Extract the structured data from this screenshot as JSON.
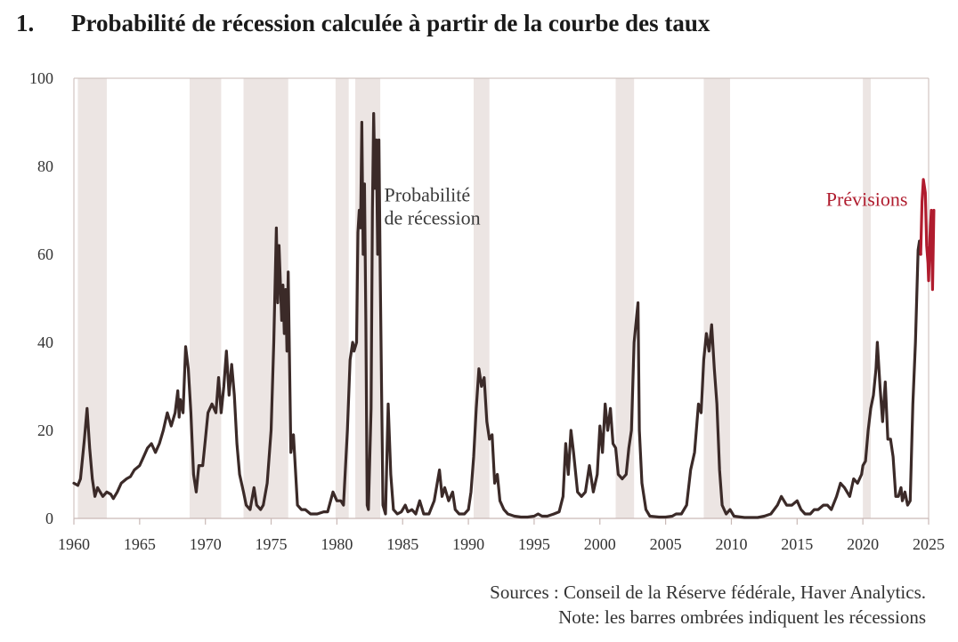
{
  "figure": {
    "number": "1.",
    "title": "Probabilité de récession calculée à partir de la courbe des taux"
  },
  "colors": {
    "series_line": "#3b2a28",
    "forecast_line": "#b01c2e",
    "recession_shade": "#ece5e3",
    "axis": "#c9b9b6"
  },
  "chart_data": {
    "type": "line",
    "title": "Probabilité de récession calculée à partir de la courbe des taux",
    "xlabel": "",
    "ylabel": "",
    "xlim": [
      1960,
      2025
    ],
    "ylim": [
      0,
      100
    ],
    "x_ticks": [
      "1960",
      "1965",
      "1970",
      "1975",
      "1980",
      "1985",
      "1990",
      "1995",
      "2000",
      "2005",
      "2010",
      "2015",
      "2020",
      "2025"
    ],
    "y_ticks": [
      "0",
      "20",
      "40",
      "60",
      "80",
      "100"
    ],
    "grid": false,
    "legend": "none",
    "annotations": [
      {
        "text_lines": [
          "Probabilité",
          "de récession"
        ],
        "series": "Probabilité de récession",
        "x": 1983.6,
        "y": 72
      },
      {
        "text_lines": [
          "Prévisions"
        ],
        "series": "Prévisions",
        "x": 2017.2,
        "y": 71
      }
    ],
    "recessions": [
      [
        1960.3,
        1962.5
      ],
      [
        1968.8,
        1971.2
      ],
      [
        1972.9,
        1976.3
      ],
      [
        1979.9,
        1980.9
      ],
      [
        1981.4,
        1983.3
      ],
      [
        1990.4,
        1991.6
      ],
      [
        2001.2,
        2002.6
      ],
      [
        2007.9,
        2009.9
      ],
      [
        2020.0,
        2020.6
      ]
    ],
    "series": [
      {
        "name": "Probabilité de récession",
        "points": [
          [
            1960.0,
            8
          ],
          [
            1960.3,
            7.5
          ],
          [
            1960.5,
            9
          ],
          [
            1960.8,
            18
          ],
          [
            1961.0,
            25
          ],
          [
            1961.2,
            16
          ],
          [
            1961.4,
            9
          ],
          [
            1961.6,
            5
          ],
          [
            1961.8,
            7
          ],
          [
            1962.0,
            6
          ],
          [
            1962.2,
            5
          ],
          [
            1962.5,
            6
          ],
          [
            1962.8,
            5.5
          ],
          [
            1963.0,
            4.5
          ],
          [
            1963.3,
            6
          ],
          [
            1963.6,
            8
          ],
          [
            1964.0,
            9
          ],
          [
            1964.3,
            9.5
          ],
          [
            1964.6,
            11
          ],
          [
            1965.0,
            12
          ],
          [
            1965.3,
            14
          ],
          [
            1965.6,
            16
          ],
          [
            1965.9,
            17
          ],
          [
            1966.2,
            15
          ],
          [
            1966.5,
            17
          ],
          [
            1966.8,
            20
          ],
          [
            1967.1,
            24
          ],
          [
            1967.4,
            21
          ],
          [
            1967.7,
            24
          ],
          [
            1967.9,
            29
          ],
          [
            1968.0,
            23
          ],
          [
            1968.1,
            27
          ],
          [
            1968.3,
            24
          ],
          [
            1968.5,
            39
          ],
          [
            1968.7,
            34
          ],
          [
            1968.9,
            24
          ],
          [
            1969.1,
            10
          ],
          [
            1969.3,
            6
          ],
          [
            1969.5,
            12
          ],
          [
            1969.8,
            12
          ],
          [
            1970.0,
            18
          ],
          [
            1970.2,
            24
          ],
          [
            1970.5,
            26
          ],
          [
            1970.8,
            24
          ],
          [
            1971.0,
            32
          ],
          [
            1971.2,
            24
          ],
          [
            1971.4,
            30
          ],
          [
            1971.6,
            38
          ],
          [
            1971.8,
            28
          ],
          [
            1972.0,
            35
          ],
          [
            1972.2,
            28
          ],
          [
            1972.4,
            17
          ],
          [
            1972.6,
            10
          ],
          [
            1972.9,
            6
          ],
          [
            1973.1,
            3
          ],
          [
            1973.4,
            2
          ],
          [
            1973.7,
            7
          ],
          [
            1973.9,
            3
          ],
          [
            1974.2,
            2
          ],
          [
            1974.4,
            3
          ],
          [
            1974.7,
            8
          ],
          [
            1975.0,
            20
          ],
          [
            1975.2,
            40
          ],
          [
            1975.4,
            66
          ],
          [
            1975.5,
            49
          ],
          [
            1975.6,
            62
          ],
          [
            1975.8,
            45
          ],
          [
            1975.9,
            53
          ],
          [
            1976.0,
            42
          ],
          [
            1976.1,
            52
          ],
          [
            1976.2,
            38
          ],
          [
            1976.3,
            56
          ],
          [
            1976.5,
            15
          ],
          [
            1976.7,
            19
          ],
          [
            1977.0,
            3
          ],
          [
            1977.3,
            2
          ],
          [
            1977.6,
            2
          ],
          [
            1978.0,
            1
          ],
          [
            1978.5,
            1
          ],
          [
            1979.0,
            1.5
          ],
          [
            1979.3,
            1.5
          ],
          [
            1979.7,
            6
          ],
          [
            1980.0,
            4
          ],
          [
            1980.3,
            4
          ],
          [
            1980.5,
            3
          ],
          [
            1980.8,
            20
          ],
          [
            1981.0,
            36
          ],
          [
            1981.2,
            40
          ],
          [
            1981.3,
            38
          ],
          [
            1981.5,
            40
          ],
          [
            1981.6,
            65
          ],
          [
            1981.7,
            70
          ],
          [
            1981.8,
            66
          ],
          [
            1981.9,
            90
          ],
          [
            1982.0,
            60
          ],
          [
            1982.1,
            76
          ],
          [
            1982.2,
            45
          ],
          [
            1982.3,
            3
          ],
          [
            1982.4,
            2
          ],
          [
            1982.6,
            25
          ],
          [
            1982.7,
            70
          ],
          [
            1982.8,
            92
          ],
          [
            1982.9,
            75
          ],
          [
            1983.0,
            86
          ],
          [
            1983.1,
            60
          ],
          [
            1983.2,
            86
          ],
          [
            1983.3,
            55
          ],
          [
            1983.5,
            3
          ],
          [
            1983.7,
            1
          ],
          [
            1983.9,
            26
          ],
          [
            1984.1,
            10
          ],
          [
            1984.3,
            2
          ],
          [
            1984.6,
            1
          ],
          [
            1984.9,
            1.5
          ],
          [
            1985.2,
            3
          ],
          [
            1985.4,
            1.5
          ],
          [
            1985.7,
            2
          ],
          [
            1986.0,
            1
          ],
          [
            1986.3,
            4
          ],
          [
            1986.6,
            1
          ],
          [
            1987.0,
            1
          ],
          [
            1987.4,
            4
          ],
          [
            1987.8,
            11
          ],
          [
            1988.0,
            5
          ],
          [
            1988.2,
            7
          ],
          [
            1988.5,
            4
          ],
          [
            1988.8,
            6
          ],
          [
            1989.0,
            2
          ],
          [
            1989.3,
            1
          ],
          [
            1989.7,
            1
          ],
          [
            1990.0,
            2
          ],
          [
            1990.2,
            6
          ],
          [
            1990.4,
            14
          ],
          [
            1990.6,
            25
          ],
          [
            1990.8,
            34
          ],
          [
            1991.0,
            30
          ],
          [
            1991.2,
            32
          ],
          [
            1991.4,
            22
          ],
          [
            1991.6,
            18
          ],
          [
            1991.8,
            19
          ],
          [
            1992.0,
            8
          ],
          [
            1992.2,
            10
          ],
          [
            1992.4,
            4
          ],
          [
            1992.7,
            2
          ],
          [
            1993.0,
            1
          ],
          [
            1993.5,
            0.5
          ],
          [
            1994.0,
            0.3
          ],
          [
            1994.5,
            0.3
          ],
          [
            1995.0,
            0.5
          ],
          [
            1995.3,
            1
          ],
          [
            1995.6,
            0.5
          ],
          [
            1996.0,
            0.5
          ],
          [
            1996.5,
            1
          ],
          [
            1996.9,
            1.5
          ],
          [
            1997.2,
            5
          ],
          [
            1997.4,
            17
          ],
          [
            1997.6,
            10
          ],
          [
            1997.8,
            20
          ],
          [
            1998.0,
            15
          ],
          [
            1998.3,
            6
          ],
          [
            1998.6,
            5
          ],
          [
            1998.9,
            6
          ],
          [
            1999.2,
            12
          ],
          [
            1999.5,
            6
          ],
          [
            1999.8,
            10
          ],
          [
            2000.0,
            21
          ],
          [
            2000.2,
            15
          ],
          [
            2000.4,
            26
          ],
          [
            2000.6,
            20
          ],
          [
            2000.8,
            25
          ],
          [
            2001.0,
            17
          ],
          [
            2001.2,
            16
          ],
          [
            2001.4,
            10
          ],
          [
            2001.7,
            9
          ],
          [
            2002.0,
            10
          ],
          [
            2002.2,
            16
          ],
          [
            2002.4,
            20
          ],
          [
            2002.6,
            40
          ],
          [
            2002.8,
            46
          ],
          [
            2002.9,
            49
          ],
          [
            2003.0,
            20
          ],
          [
            2003.2,
            8
          ],
          [
            2003.5,
            2
          ],
          [
            2003.8,
            0.5
          ],
          [
            2004.5,
            0.3
          ],
          [
            2005.0,
            0.3
          ],
          [
            2005.5,
            0.5
          ],
          [
            2005.8,
            1
          ],
          [
            2006.2,
            1
          ],
          [
            2006.6,
            3
          ],
          [
            2006.9,
            11
          ],
          [
            2007.2,
            15
          ],
          [
            2007.5,
            26
          ],
          [
            2007.7,
            24
          ],
          [
            2007.9,
            36
          ],
          [
            2008.1,
            42
          ],
          [
            2008.3,
            38
          ],
          [
            2008.5,
            44
          ],
          [
            2008.7,
            34
          ],
          [
            2008.9,
            26
          ],
          [
            2009.1,
            11
          ],
          [
            2009.3,
            3
          ],
          [
            2009.6,
            1
          ],
          [
            2009.9,
            2
          ],
          [
            2010.2,
            0.5
          ],
          [
            2011.0,
            0.2
          ],
          [
            2012.0,
            0.2
          ],
          [
            2012.5,
            0.5
          ],
          [
            2013.0,
            1
          ],
          [
            2013.5,
            3
          ],
          [
            2013.8,
            5
          ],
          [
            2014.2,
            3
          ],
          [
            2014.6,
            3
          ],
          [
            2015.0,
            4
          ],
          [
            2015.3,
            2
          ],
          [
            2015.6,
            1
          ],
          [
            2016.0,
            1
          ],
          [
            2016.3,
            2
          ],
          [
            2016.6,
            2
          ],
          [
            2017.0,
            3
          ],
          [
            2017.3,
            3
          ],
          [
            2017.6,
            2
          ],
          [
            2018.0,
            5
          ],
          [
            2018.3,
            8
          ],
          [
            2018.6,
            7
          ],
          [
            2019.0,
            5
          ],
          [
            2019.3,
            9
          ],
          [
            2019.6,
            8
          ],
          [
            2019.9,
            10
          ],
          [
            2020.0,
            12
          ],
          [
            2020.2,
            13
          ],
          [
            2020.4,
            20
          ],
          [
            2020.6,
            25
          ],
          [
            2020.8,
            28
          ],
          [
            2021.0,
            34
          ],
          [
            2021.1,
            40
          ],
          [
            2021.3,
            30
          ],
          [
            2021.5,
            22
          ],
          [
            2021.7,
            31
          ],
          [
            2021.9,
            18
          ],
          [
            2022.1,
            18
          ],
          [
            2022.3,
            14
          ],
          [
            2022.5,
            5
          ],
          [
            2022.7,
            5
          ],
          [
            2022.9,
            7
          ],
          [
            2023.0,
            4
          ],
          [
            2023.2,
            6
          ],
          [
            2023.4,
            3
          ],
          [
            2023.6,
            4
          ],
          [
            2023.8,
            26
          ],
          [
            2024.0,
            40
          ],
          [
            2024.2,
            61
          ],
          [
            2024.3,
            63
          ],
          [
            2024.4,
            60
          ]
        ]
      },
      {
        "name": "Prévisions",
        "points": [
          [
            2024.4,
            60
          ],
          [
            2024.5,
            72
          ],
          [
            2024.6,
            77
          ],
          [
            2024.75,
            74
          ],
          [
            2024.85,
            62
          ],
          [
            2024.95,
            58
          ],
          [
            2025.0,
            54
          ],
          [
            2025.1,
            64
          ],
          [
            2025.2,
            70
          ],
          [
            2025.3,
            52
          ],
          [
            2025.4,
            70
          ]
        ]
      }
    ]
  },
  "notes": {
    "sources": "Sources : Conseil de la Réserve fédérale, Haver Analytics.",
    "note": "Note: les barres ombrées indiquent les récessions"
  }
}
